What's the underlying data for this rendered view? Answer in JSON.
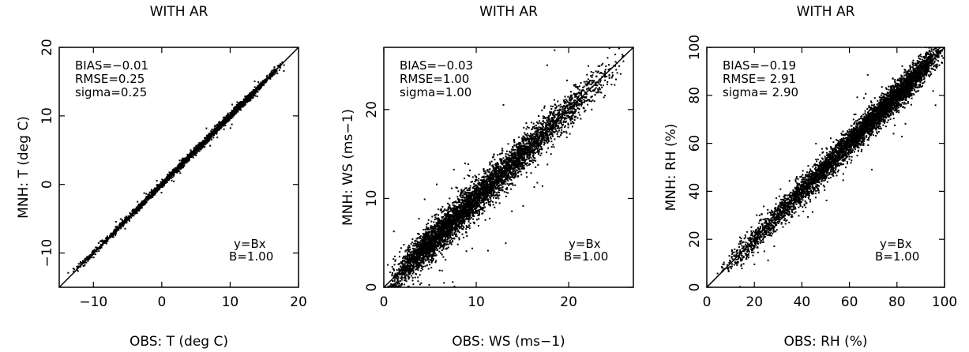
{
  "chart_data": [
    {
      "type": "scatter",
      "title": "WITH AR",
      "xlabel": "OBS: T (deg C)",
      "ylabel": "MNH: T (deg C)",
      "xlim": [
        -15,
        20
      ],
      "ylim": [
        -15,
        20
      ],
      "xticks": [
        -10,
        0,
        10,
        20
      ],
      "yticks": [
        -10,
        0,
        10,
        20
      ],
      "xticklabels": [
        "−10",
        "0",
        "10",
        "20"
      ],
      "yticklabels": [
        "−10",
        "0",
        "10",
        "20"
      ],
      "grid": false,
      "stats": [
        "BIAS=−0.01",
        "RMSE=0.25",
        "sigma=0.25"
      ],
      "fit": [
        "y=Bx",
        "B=1.00"
      ],
      "fit_line": {
        "slope": 1.0,
        "intercept": 0
      },
      "scatter_model": {
        "x_range": [
          -14,
          18
        ],
        "density_peak": 11,
        "noise_sd": 0.25,
        "n": 2600,
        "color": "#000000"
      }
    },
    {
      "type": "scatter",
      "title": "WITH AR",
      "xlabel": "OBS: WS (ms−1)",
      "ylabel": "MNH: WS (ms−1)",
      "xlim": [
        0,
        27
      ],
      "ylim": [
        0,
        27
      ],
      "xticks": [
        0,
        10,
        20
      ],
      "yticks": [
        0,
        10,
        20
      ],
      "xticklabels": [
        "0",
        "10",
        "20"
      ],
      "yticklabels": [
        "0",
        "10",
        "20"
      ],
      "grid": false,
      "stats": [
        "BIAS=−0.03",
        "RMSE=1.00",
        "sigma=1.00"
      ],
      "fit": [
        "y=Bx",
        "B=1.00"
      ],
      "fit_line": {
        "slope": 1.0,
        "intercept": 0
      },
      "scatter_model": {
        "x_range": [
          0.3,
          26
        ],
        "density_peak": 5,
        "noise_sd": 1.0,
        "n": 5200,
        "color": "#000000"
      }
    },
    {
      "type": "scatter",
      "title": "WITH AR",
      "xlabel": "OBS: RH (%)",
      "ylabel": "MNH: RH (%)",
      "xlim": [
        0,
        100
      ],
      "ylim": [
        0,
        100
      ],
      "xticks": [
        0,
        20,
        40,
        60,
        80,
        100
      ],
      "yticks": [
        0,
        20,
        40,
        60,
        80,
        100
      ],
      "xticklabels": [
        "0",
        "20",
        "40",
        "60",
        "80",
        "100"
      ],
      "yticklabels": [
        "0",
        "20",
        "40",
        "60",
        "80",
        "100"
      ],
      "grid": false,
      "stats": [
        "BIAS=−0.19",
        "RMSE=  2.91",
        "sigma=  2.90"
      ],
      "fit": [
        "y=Bx",
        "B=1.00"
      ],
      "fit_line": {
        "slope": 1.0,
        "intercept": 0
      },
      "scatter_model": {
        "x_range": [
          4,
          100
        ],
        "density_peak": 85,
        "noise_sd": 2.9,
        "n": 5200,
        "color": "#000000"
      }
    }
  ]
}
